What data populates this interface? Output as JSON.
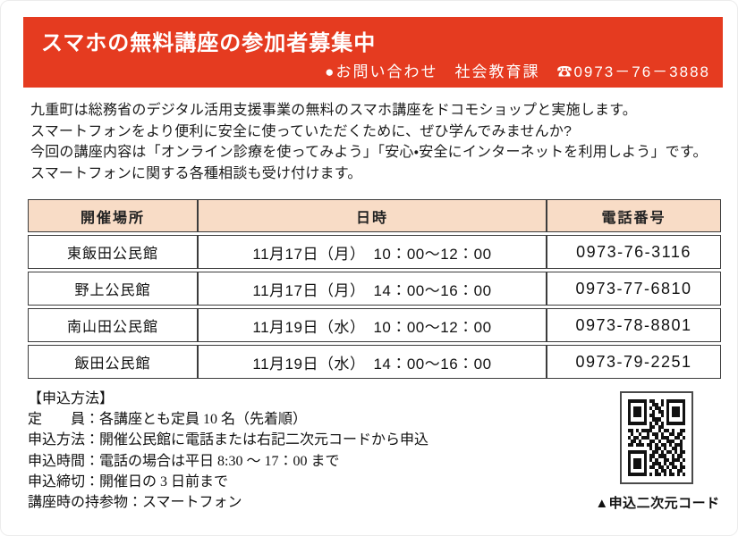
{
  "banner": {
    "title": "スマホの無料講座の参加者募集中",
    "contact": "●お問い合わせ　社会教育課　☎0973－76－3888"
  },
  "intro": {
    "lines": [
      "九重町は総務省のデジタル活用支援事業の無料のスマホ講座をドコモショップと実施します。",
      "スマートフォンをより便利に安全に使っていただくために、ぜひ学んでみませんか?",
      "今回の講座内容は「オンライン診療を使ってみよう」「安心・安全にインターネットを利用しよう」です。",
      "スマートフォンに関する各種相談も受け付けます。"
    ]
  },
  "schedule_table": {
    "headers": [
      "開催場所",
      "日時",
      "電話番号"
    ],
    "rows": [
      {
        "venue": "東飯田公民館",
        "datetime": "11月17日（月）　10：00～12：00",
        "phone": "0973-76-3116"
      },
      {
        "venue": "野上公民館",
        "datetime": "11月17日（月）　14：00～16：00",
        "phone": "0973-77-6810"
      },
      {
        "venue": "南山田公民館",
        "datetime": "11月19日（水）　10：00～12：00",
        "phone": "0973-78-8801"
      },
      {
        "venue": "飯田公民館",
        "datetime": "11月19日（水）　14：00～16：00",
        "phone": "0973-79-2251"
      }
    ]
  },
  "application": {
    "heading": "【申込方法】",
    "lines": [
      "定　　員：各講座とも定員 10 名（先着順）",
      "申込方法：開催公民館に電話または右記二次元コードから申込",
      "申込時間：電話の場合は平日 8:30 ～ 17：00 まで",
      "申込締切：開催日の 3 日前まで",
      "講座時の持参物：スマートフォン"
    ]
  },
  "qr": {
    "caption": "▲申込二次元コード",
    "pattern": [
      "111111101100101111111",
      "100000100110101000001",
      "101110101011001011101",
      "101110100101101011101",
      "101110101100101011101",
      "100000100111001000001",
      "111111101010101111111",
      "000000001101100000000",
      "110101111001011010011",
      "010010010110100110110",
      "101101110010111001101",
      "011010001101001110010",
      "110111011010110101110",
      "000000001011010011010",
      "111111100110101101011",
      "100000101101110010110",
      "101110101010011011101",
      "101110100111010110010",
      "101110101101101011011",
      "100000100010110100110",
      "111111101011010110101"
    ]
  },
  "colors": {
    "banner_red": "#e53b20",
    "table_header_bg": "#f8dcc6",
    "table_border": "#3c3c3c"
  }
}
